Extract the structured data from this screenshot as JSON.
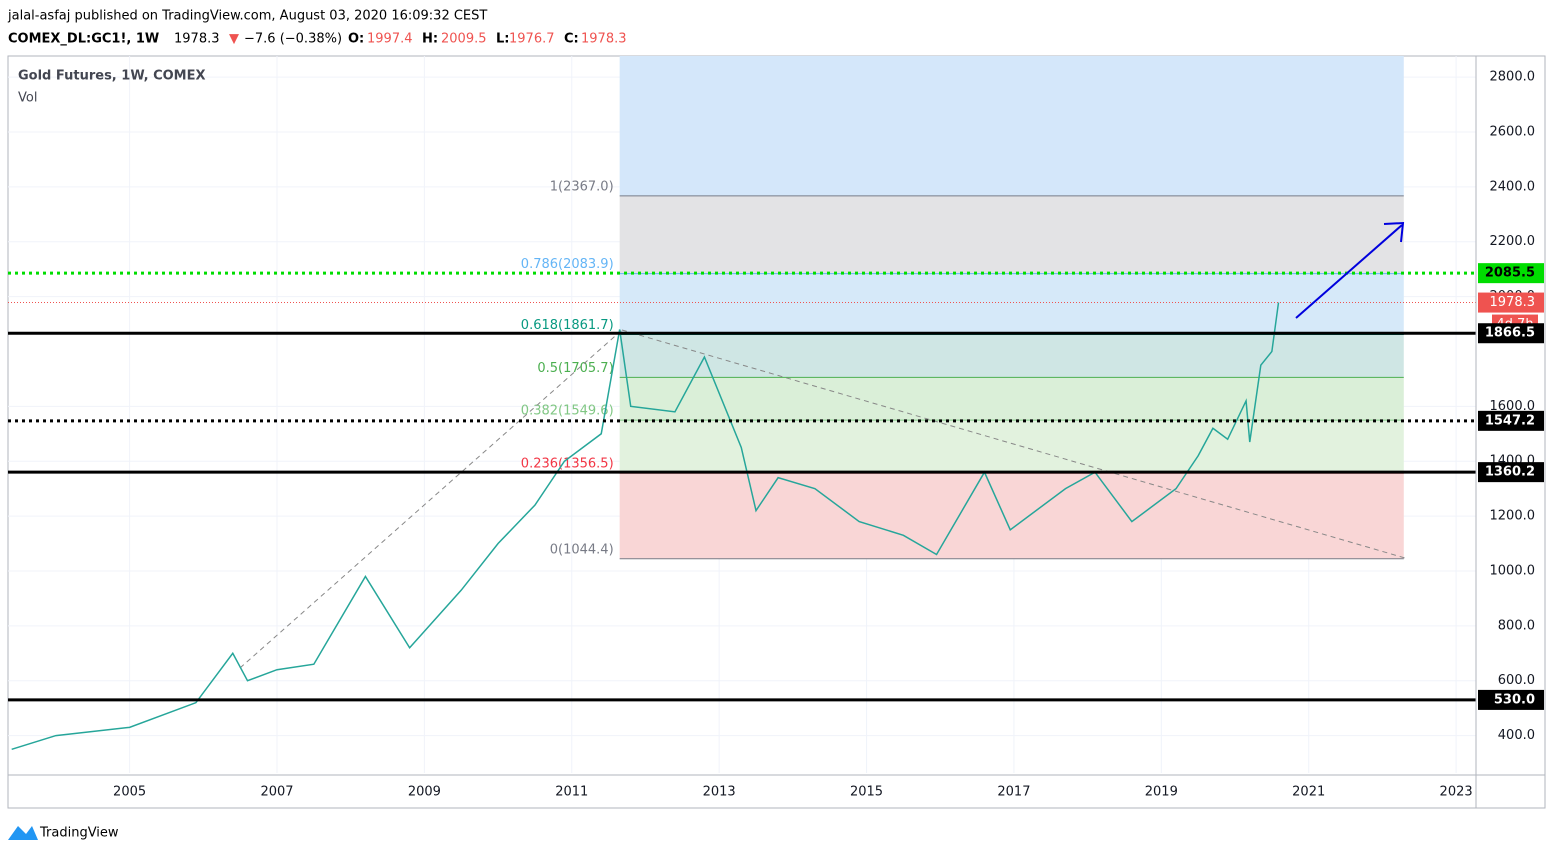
{
  "header": {
    "byline": "jalal-asfaj published on TradingView.com, August 03, 2020 16:09:32 CEST",
    "symbol": "COMEX_DL:GC1!, 1W",
    "last": 1978.3,
    "arrow": "▼",
    "change": "−7.6 (−0.38%)",
    "o_label": "O:",
    "open": 1997.4,
    "h_label": "H:",
    "high": 2009.5,
    "l_label": "L:",
    "low": 1976.7,
    "c_label": "C:",
    "close": 1978.3
  },
  "footer": {
    "brand": "TradingView"
  },
  "chart_data": {
    "type": "line",
    "title": "Gold Futures, 1W, COMEX",
    "subtitle": "Vol",
    "color": "#26a69a",
    "x": [
      2003.4,
      2004,
      2005,
      2005.9,
      2006.4,
      2006.6,
      2007,
      2007.5,
      2008.2,
      2008.8,
      2009.5,
      2010,
      2010.5,
      2010.9,
      2011.4,
      2011.65,
      2011.8,
      2012.4,
      2012.8,
      2013.3,
      2013.5,
      2013.8,
      2014.3,
      2014.9,
      2015.5,
      2015.95,
      2016.6,
      2016.95,
      2017.7,
      2018.1,
      2018.6,
      2019.2,
      2019.5,
      2019.7,
      2019.9,
      2020.15,
      2020.2,
      2020.35,
      2020.5,
      2020.59
    ],
    "values": [
      350,
      400,
      430,
      520,
      700,
      600,
      640,
      660,
      980,
      720,
      930,
      1100,
      1240,
      1400,
      1500,
      1880,
      1600,
      1580,
      1780,
      1450,
      1220,
      1340,
      1300,
      1180,
      1130,
      1060,
      1360,
      1150,
      1300,
      1360,
      1180,
      1300,
      1420,
      1520,
      1480,
      1620,
      1470,
      1750,
      1800,
      1978.3
    ],
    "xlim": [
      2003.35,
      2023.27
    ],
    "xticks": [
      2005,
      2007,
      2009,
      2011,
      2013,
      2015,
      2017,
      2019,
      2021,
      2023
    ],
    "ylim": [
      136,
      2877
    ],
    "yticks": [
      {
        "value": 400,
        "label": "400.0"
      },
      {
        "value": 600,
        "label": "600.0"
      },
      {
        "value": 800,
        "label": "800.0"
      },
      {
        "value": 1000,
        "label": "1000.0"
      },
      {
        "value": 1200,
        "label": "1200.0"
      },
      {
        "value": 1400,
        "label": "1400.0"
      },
      {
        "value": 1600,
        "label": "1600.0"
      },
      {
        "value": 2000,
        "label": "2000.0"
      },
      {
        "value": 2200,
        "label": "2200.0"
      },
      {
        "value": 2400,
        "label": "2400.0"
      },
      {
        "value": 2600,
        "label": "2600.0"
      },
      {
        "value": 2800,
        "label": "2800.0"
      }
    ],
    "fib_x": [
      2011.65,
      2022.29
    ],
    "fib_top_color": "#d4e7fa",
    "fib_levels": [
      {
        "value": 2367.0,
        "label": "1(2367.0)",
        "color": "#787b86",
        "zone_color": "#e3e3e5"
      },
      {
        "value": 2083.9,
        "label": "0.786(2083.9)",
        "color": "#64b5f6",
        "zone_color": "#d6e9f9"
      },
      {
        "value": 1861.7,
        "label": "0.618(1861.7)",
        "color": "#089981",
        "zone_color": "#cfe6e4"
      },
      {
        "value": 1705.7,
        "label": "0.5(1705.7)",
        "color": "#4caf50",
        "zone_color": "#daefd8"
      },
      {
        "value": 1549.6,
        "label": "0.382(1549.6)",
        "color": "#81c784",
        "zone_color": "#e2f2de"
      },
      {
        "value": 1356.5,
        "label": "0.236(1356.5)",
        "color": "#f23645",
        "zone_color": "#f9d6d6"
      },
      {
        "value": 1044.4,
        "label": "0(1044.4)",
        "color": "#787b86"
      }
    ],
    "levels": [
      {
        "value": 2085.5,
        "label": "2085.5",
        "color": "#00dd00",
        "style": "dotted"
      },
      {
        "value": 1866.5,
        "label": "1866.5",
        "color": "#000000",
        "style": "solid"
      },
      {
        "value": 1547.2,
        "label": "1547.2",
        "color": "#000000",
        "style": "dotted"
      },
      {
        "value": 1360.2,
        "label": "1360.2",
        "color": "#000000",
        "style": "solid"
      },
      {
        "value": 530,
        "label": "530.0",
        "color": "#000000",
        "style": "solid"
      }
    ],
    "last_price": {
      "value": 1978.3,
      "label": "1978.3",
      "color": "#ef5350",
      "countdown": "4d 7h"
    }
  }
}
